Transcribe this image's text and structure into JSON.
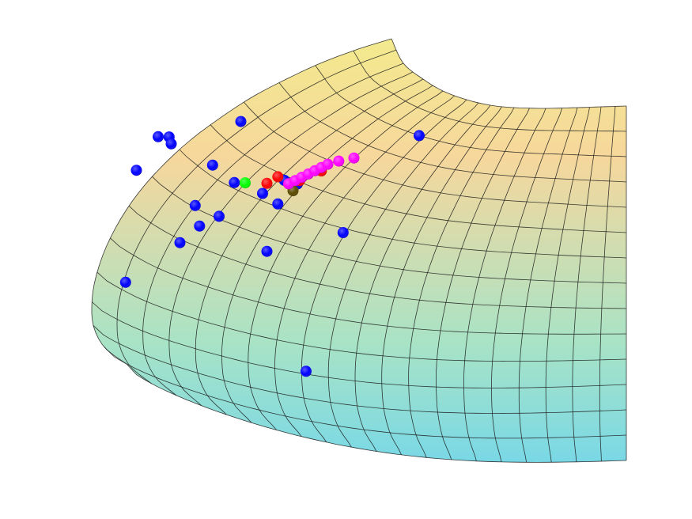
{
  "chart_data": {
    "type": "scatter",
    "title": "",
    "xlabel": "",
    "ylabel": "",
    "zlabel": "",
    "surface": {
      "shape": "hyperbolic paraboloid patch (saddle)",
      "colormap": [
        "#f3ea8e",
        "#f6d79c",
        "#a8e3c6",
        "#79d8e6"
      ],
      "grid": true,
      "axes_visible": false
    },
    "series": [
      {
        "color": "#0000ff",
        "points": [
          [
            -0.9,
            0.58,
            0.45
          ],
          [
            -0.75,
            0.68,
            0.42
          ],
          [
            -0.8,
            0.68,
            0.44
          ],
          [
            -0.74,
            0.66,
            0.43
          ],
          [
            -0.55,
            0.6,
            0.45
          ],
          [
            -0.52,
            0.45,
            0.45
          ],
          [
            -0.42,
            0.73,
            0.48
          ],
          [
            -0.63,
            0.48,
            0.42
          ],
          [
            -0.61,
            0.42,
            0.41
          ],
          [
            -0.7,
            0.37,
            0.41
          ],
          [
            -0.95,
            0.25,
            0.4
          ],
          [
            -0.45,
            0.55,
            0.43
          ],
          [
            -0.32,
            0.52,
            0.44
          ],
          [
            -0.25,
            0.49,
            0.44
          ],
          [
            -0.22,
            0.56,
            0.46
          ],
          [
            -0.16,
            0.55,
            0.46
          ],
          [
            -0.3,
            0.35,
            0.39
          ],
          [
            0.05,
            0.41,
            0.42
          ],
          [
            0.4,
            0.7,
            0.44
          ],
          [
            -0.12,
            0.0,
            0.3
          ]
        ]
      },
      {
        "color": "#ff0000",
        "points": [
          [
            -0.3,
            0.55,
            0.45
          ],
          [
            -0.25,
            0.57,
            0.45
          ],
          [
            -0.2,
            0.55,
            0.45
          ],
          [
            -0.15,
            0.56,
            0.45
          ],
          [
            -0.05,
            0.59,
            0.46
          ]
        ]
      },
      {
        "color": "#00ff00",
        "points": [
          [
            -0.4,
            0.55,
            0.45
          ]
        ]
      },
      {
        "color": "#5a4a00",
        "points": [
          [
            -0.18,
            0.53,
            0.44
          ]
        ]
      },
      {
        "color": "#ff00ff",
        "points": [
          [
            -0.2,
            0.55,
            0.45
          ],
          [
            -0.17,
            0.56,
            0.45
          ],
          [
            -0.14,
            0.57,
            0.45
          ],
          [
            -0.11,
            0.58,
            0.46
          ],
          [
            -0.08,
            0.59,
            0.46
          ],
          [
            -0.05,
            0.6,
            0.46
          ],
          [
            -0.02,
            0.61,
            0.46
          ],
          [
            0.03,
            0.62,
            0.46
          ],
          [
            0.1,
            0.63,
            0.46
          ]
        ]
      }
    ]
  }
}
